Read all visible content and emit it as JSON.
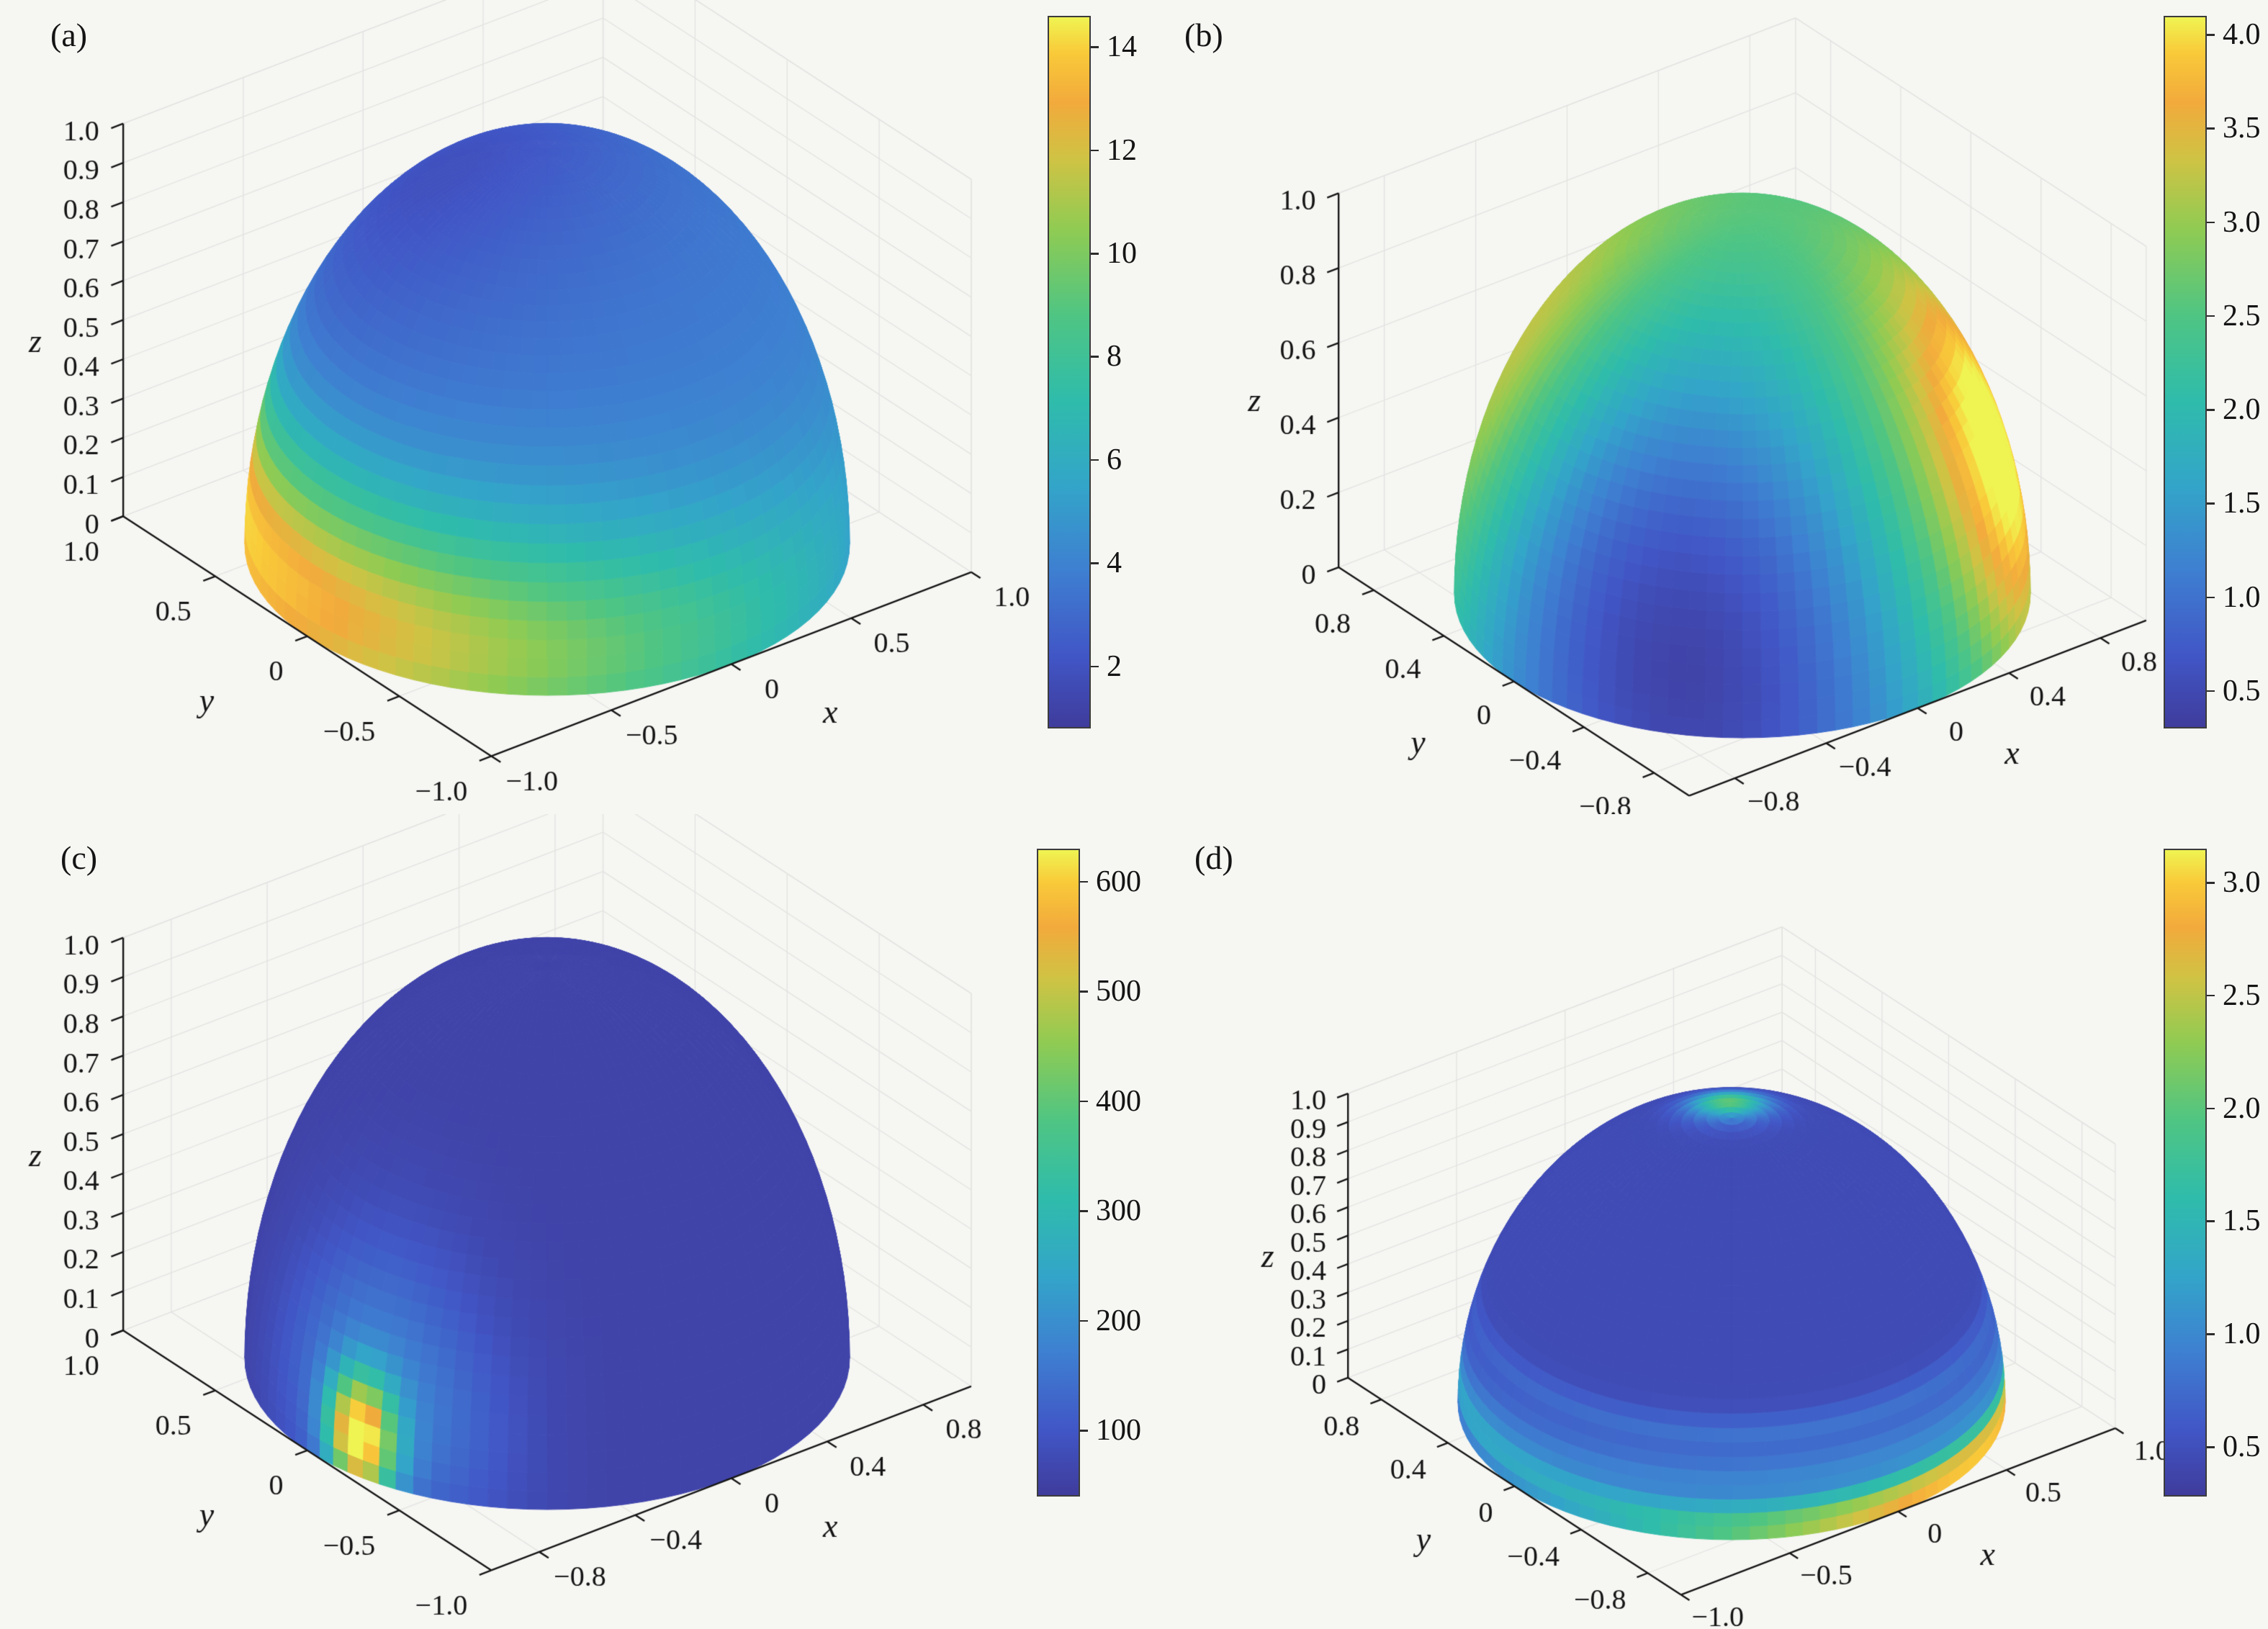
{
  "figure": {
    "background_color": "#f6f6f3",
    "text_color": "#141414"
  },
  "chart_data": {
    "type": "multi-panel-3d-surface",
    "surface_shape": "unit hemisphere (z >= 0) colored by scalar field",
    "view": {
      "azimuth_deg": -37.5,
      "elevation_deg": 30,
      "grid": true,
      "legend": "colorbar right of each panel"
    },
    "colormap": {
      "stops": [
        {
          "pos": 0.0,
          "color": "#3f3c9c"
        },
        {
          "pos": 0.1,
          "color": "#4156c6"
        },
        {
          "pos": 0.22,
          "color": "#3e7fd1"
        },
        {
          "pos": 0.34,
          "color": "#33a5c9"
        },
        {
          "pos": 0.46,
          "color": "#2fbcab"
        },
        {
          "pos": 0.58,
          "color": "#4fc583"
        },
        {
          "pos": 0.7,
          "color": "#8fcb53"
        },
        {
          "pos": 0.8,
          "color": "#cfc344"
        },
        {
          "pos": 0.88,
          "color": "#f2aa3c"
        },
        {
          "pos": 0.95,
          "color": "#f9ca39"
        },
        {
          "pos": 1.0,
          "color": "#eff452"
        }
      ]
    },
    "panels": [
      {
        "panel_label": "(a)",
        "type": "surface3d_hemisphere",
        "axes": {
          "x": {
            "label": "x",
            "range": [
              -1,
              1
            ],
            "ticks": [
              -1,
              -0.5,
              0,
              0.5,
              1
            ],
            "tick_labels": [
              "−1.0",
              "−0.5",
              "0",
              "0.5",
              "1.0"
            ]
          },
          "y": {
            "label": "y",
            "range": [
              -1,
              1
            ],
            "ticks": [
              -1,
              -0.5,
              0,
              0.5,
              1
            ],
            "tick_labels": [
              "−1.0",
              "−0.5",
              "0",
              "0.5",
              "1.0"
            ]
          },
          "z": {
            "label": "z",
            "range": [
              0,
              1
            ],
            "ticks": [
              0,
              0.1,
              0.2,
              0.3,
              0.4,
              0.5,
              0.6,
              0.7,
              0.8,
              0.9,
              1
            ],
            "tick_labels": [
              "0",
              "0.1",
              "0.2",
              "0.3",
              "0.4",
              "0.5",
              "0.6",
              "0.7",
              "0.8",
              "0.9",
              "1.0"
            ]
          }
        },
        "colorbar": {
          "range": [
            0.8,
            14.6
          ],
          "ticks": [
            2,
            4,
            6,
            8,
            10,
            12,
            14
          ],
          "tick_labels": [
            "2",
            "4",
            "6",
            "8",
            "10",
            "12",
            "14"
          ]
        },
        "field": {
          "base": 3.8,
          "z_gain": 0,
          "blobs": [
            {
              "center": [
                -0.25,
                0.25,
                0.94
              ],
              "amplitude": -1.9,
              "sigma_rad": 0.5
            }
          ],
          "bands": [
            {
              "z_center": 0.1,
              "z_sigma": 0.22,
              "amplitude": 10.5,
              "lon_center_rad": 2.48,
              "lon_sigma_rad": 1.6
            }
          ]
        }
      },
      {
        "panel_label": "(b)",
        "type": "surface3d_hemisphere",
        "axes": {
          "x": {
            "label": "x",
            "range": [
              -1,
              1
            ],
            "ticks": [
              -0.8,
              -0.4,
              0,
              0.4,
              0.8
            ],
            "tick_labels": [
              "−0.8",
              "−0.4",
              "0",
              "0.4",
              "0.8"
            ]
          },
          "y": {
            "label": "y",
            "range": [
              -1,
              1
            ],
            "ticks": [
              -0.8,
              -0.4,
              0,
              0.4,
              0.8
            ],
            "tick_labels": [
              "−0.8",
              "−0.4",
              "0",
              "0.4",
              "0.8"
            ]
          },
          "z": {
            "label": "z",
            "range": [
              0,
              1
            ],
            "ticks": [
              0,
              0.2,
              0.4,
              0.6,
              0.8,
              1
            ],
            "tick_labels": [
              "0",
              "0.2",
              "0.4",
              "0.6",
              "0.8",
              "1.0"
            ]
          }
        },
        "colorbar": {
          "range": [
            0.3,
            4.1
          ],
          "ticks": [
            0.5,
            1.0,
            1.5,
            2.0,
            2.5,
            3.0,
            3.5,
            4.0
          ],
          "tick_labels": [
            "0.5",
            "1.0",
            "1.5",
            "2.0",
            "2.5",
            "3.0",
            "3.5",
            "4.0"
          ]
        },
        "field": {
          "base": 1.85,
          "z_gain": 0.55,
          "blobs": [
            {
              "center": [
                0.62,
                -0.66,
                0.42
              ],
              "amplitude": 2.3,
              "sigma_rad": 0.42
            },
            {
              "center": [
                -0.85,
                -0.3,
                0.45
              ],
              "amplitude": -1.05,
              "sigma_rad": 0.55
            },
            {
              "center": [
                -0.62,
                0.48,
                0.62
              ],
              "amplitude": 1.3,
              "sigma_rad": 0.5
            },
            {
              "center": [
                -0.48,
                -0.62,
                0.1
              ],
              "amplitude": -0.9,
              "sigma_rad": 0.5
            }
          ],
          "bands": []
        }
      },
      {
        "panel_label": "(c)",
        "type": "surface3d_hemisphere",
        "axes": {
          "x": {
            "label": "x",
            "range": [
              -1,
              1
            ],
            "ticks": [
              -0.8,
              -0.4,
              0,
              0.4,
              0.8
            ],
            "tick_labels": [
              "−0.8",
              "−0.4",
              "0",
              "0.4",
              "0.8"
            ]
          },
          "y": {
            "label": "y",
            "range": [
              -1,
              1
            ],
            "ticks": [
              -1,
              -0.5,
              0,
              0.5,
              1
            ],
            "tick_labels": [
              "−1.0",
              "−0.5",
              "0",
              "0.5",
              "1.0"
            ]
          },
          "z": {
            "label": "z",
            "range": [
              0,
              1
            ],
            "ticks": [
              0,
              0.1,
              0.2,
              0.3,
              0.4,
              0.5,
              0.6,
              0.7,
              0.8,
              0.9,
              1
            ],
            "tick_labels": [
              "0",
              "0.1",
              "0.2",
              "0.3",
              "0.4",
              "0.5",
              "0.6",
              "0.7",
              "0.8",
              "0.9",
              "1.0"
            ]
          }
        },
        "colorbar": {
          "range": [
            40,
            630
          ],
          "ticks": [
            100,
            200,
            300,
            400,
            500,
            600
          ],
          "tick_labels": [
            "100",
            "200",
            "300",
            "400",
            "500",
            "600"
          ]
        },
        "field": {
          "base": 58,
          "z_gain": 0,
          "blobs": [
            {
              "center": [
                -0.97,
                -0.24,
                0.1
              ],
              "amplitude": 540,
              "sigma_rad": 0.1
            },
            {
              "center": [
                -0.93,
                -0.1,
                0.2
              ],
              "amplitude": 70,
              "sigma_rad": 0.25
            },
            {
              "center": [
                -0.8,
                -0.5,
                0.15
              ],
              "amplitude": 60,
              "sigma_rad": 0.2
            },
            {
              "center": [
                -0.9,
                -0.3,
                0.35
              ],
              "amplitude": 45,
              "sigma_rad": 0.2
            }
          ],
          "bands": []
        }
      },
      {
        "panel_label": "(d)",
        "type": "surface3d_hemisphere",
        "axes": {
          "x": {
            "label": "x",
            "range": [
              -1,
              1
            ],
            "ticks": [
              -1,
              -0.5,
              0,
              0.5,
              1
            ],
            "tick_labels": [
              "−1.0",
              "−0.5",
              "0",
              "0.5",
              "1.0"
            ]
          },
          "y": {
            "label": "y",
            "range": [
              -1,
              1
            ],
            "ticks": [
              -0.8,
              -0.4,
              0,
              0.4,
              0.8
            ],
            "tick_labels": [
              "−0.8",
              "−0.4",
              "0",
              "0.4",
              "0.8"
            ]
          },
          "z": {
            "label": "z",
            "range": [
              0,
              1
            ],
            "ticks": [
              0,
              0.1,
              0.2,
              0.3,
              0.4,
              0.5,
              0.6,
              0.7,
              0.8,
              0.9,
              1
            ],
            "tick_labels": [
              "0",
              "0.1",
              "0.2",
              "0.3",
              "0.4",
              "0.5",
              "0.6",
              "0.7",
              "0.8",
              "0.9",
              "1.0"
            ]
          }
        },
        "colorbar": {
          "range": [
            0.28,
            3.15
          ],
          "ticks": [
            0.5,
            1.0,
            1.5,
            2.0,
            2.5,
            3.0
          ],
          "tick_labels": [
            "0.5",
            "1.0",
            "1.5",
            "2.0",
            "2.5",
            "3.0"
          ]
        },
        "field": {
          "base": 0.45,
          "z_gain": 0,
          "blobs": [
            {
              "center": [
                0.08,
                0.12,
                0.99
              ],
              "amplitude": 1.6,
              "sigma_rad": 0.1
            }
          ],
          "bands": [
            {
              "z_center": 0.03,
              "z_sigma": 0.07,
              "amplitude": 2.55,
              "lon_center_rad": -1.1,
              "lon_sigma_rad": 1.05
            },
            {
              "z_center": 0.1,
              "z_sigma": 0.06,
              "amplitude": 0.75,
              "lon_center_rad": 2.6,
              "lon_sigma_rad": 0.9
            },
            {
              "z_center": 0.22,
              "z_sigma": 0.045,
              "amplitude": 0.45,
              "lon_center_rad": -1.6,
              "lon_sigma_rad": 1.6
            },
            {
              "z_center": 0.34,
              "z_sigma": 0.04,
              "amplitude": 0.35,
              "lon_center_rad": -2.0,
              "lon_sigma_rad": 1.5
            }
          ]
        }
      }
    ]
  }
}
